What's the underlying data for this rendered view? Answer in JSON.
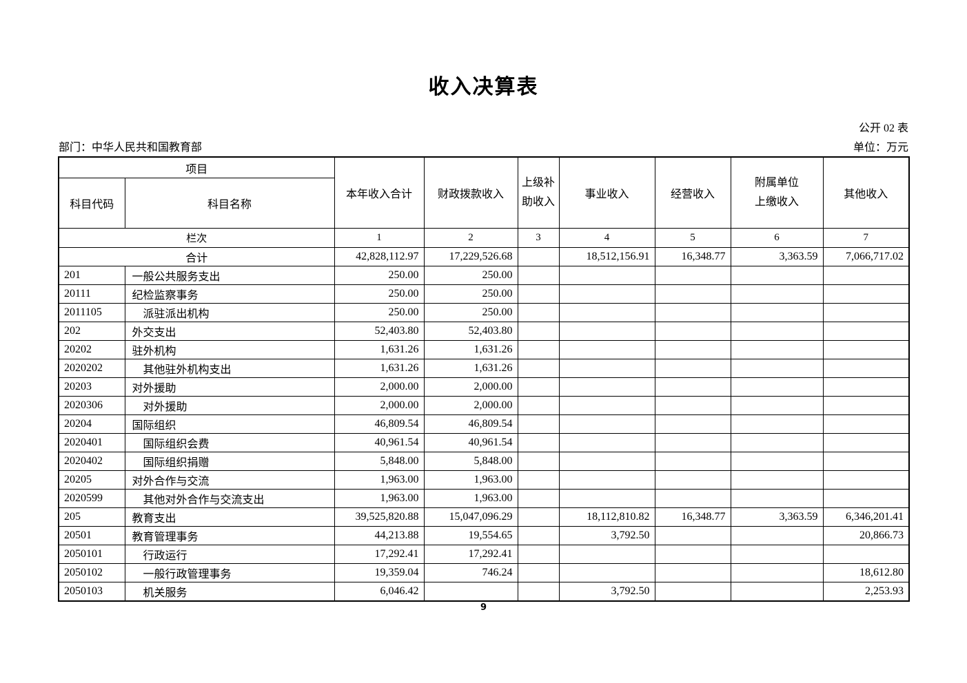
{
  "page": {
    "title": "收入决算表",
    "form_code": "公开 02 表",
    "department": "部门：中华人民共和国教育部",
    "unit": "单位：万元",
    "page_number": "9"
  },
  "table": {
    "header": {
      "item_group": "项目",
      "code": "科目代码",
      "name": "科目名称",
      "col_total": "本年收入合计",
      "col_fiscal": "财政拨款收入",
      "col_subsidy_line1": "上级补",
      "col_subsidy_line2": "助收入",
      "col_business": "事业收入",
      "col_operating": "经营收入",
      "col_affiliate_line1": "附属单位",
      "col_affiliate_line2": "上缴收入",
      "col_other": "其他收入",
      "row_label": "栏次",
      "col_numbers": [
        "1",
        "2",
        "3",
        "4",
        "5",
        "6",
        "7"
      ]
    },
    "rows": [
      {
        "code": "",
        "name": "合计",
        "span2": true,
        "bold": true,
        "indent": 0,
        "values": [
          "42,828,112.97",
          "17,229,526.68",
          "",
          "18,512,156.91",
          "16,348.77",
          "3,363.59",
          "7,066,717.02"
        ]
      },
      {
        "code": "201",
        "name": "一般公共服务支出",
        "bold": true,
        "indent": 0,
        "values": [
          "250.00",
          "250.00",
          "",
          "",
          "",
          "",
          ""
        ]
      },
      {
        "code": "20111",
        "name": "纪检监察事务",
        "bold": false,
        "indent": 0,
        "values": [
          "250.00",
          "250.00",
          "",
          "",
          "",
          "",
          ""
        ]
      },
      {
        "code": "2011105",
        "name": "派驻派出机构",
        "bold": false,
        "indent": 1,
        "values": [
          "250.00",
          "250.00",
          "",
          "",
          "",
          "",
          ""
        ]
      },
      {
        "code": "202",
        "name": "外交支出",
        "bold": true,
        "indent": 0,
        "values": [
          "52,403.80",
          "52,403.80",
          "",
          "",
          "",
          "",
          ""
        ]
      },
      {
        "code": "20202",
        "name": "驻外机构",
        "bold": false,
        "indent": 0,
        "values": [
          "1,631.26",
          "1,631.26",
          "",
          "",
          "",
          "",
          ""
        ]
      },
      {
        "code": "2020202",
        "name": "其他驻外机构支出",
        "bold": false,
        "indent": 1,
        "values": [
          "1,631.26",
          "1,631.26",
          "",
          "",
          "",
          "",
          ""
        ]
      },
      {
        "code": "20203",
        "name": "对外援助",
        "bold": false,
        "indent": 0,
        "values": [
          "2,000.00",
          "2,000.00",
          "",
          "",
          "",
          "",
          ""
        ]
      },
      {
        "code": "2020306",
        "name": "对外援助",
        "bold": false,
        "indent": 1,
        "values": [
          "2,000.00",
          "2,000.00",
          "",
          "",
          "",
          "",
          ""
        ]
      },
      {
        "code": "20204",
        "name": "国际组织",
        "bold": false,
        "indent": 0,
        "values": [
          "46,809.54",
          "46,809.54",
          "",
          "",
          "",
          "",
          ""
        ]
      },
      {
        "code": "2020401",
        "name": "国际组织会费",
        "bold": false,
        "indent": 1,
        "values": [
          "40,961.54",
          "40,961.54",
          "",
          "",
          "",
          "",
          ""
        ]
      },
      {
        "code": "2020402",
        "name": "国际组织捐赠",
        "bold": false,
        "indent": 1,
        "values": [
          "5,848.00",
          "5,848.00",
          "",
          "",
          "",
          "",
          ""
        ]
      },
      {
        "code": "20205",
        "name": "对外合作与交流",
        "bold": false,
        "indent": 0,
        "values": [
          "1,963.00",
          "1,963.00",
          "",
          "",
          "",
          "",
          ""
        ]
      },
      {
        "code": "2020599",
        "name": "其他对外合作与交流支出",
        "bold": false,
        "indent": 1,
        "values": [
          "1,963.00",
          "1,963.00",
          "",
          "",
          "",
          "",
          ""
        ]
      },
      {
        "code": "205",
        "name": "教育支出",
        "bold": true,
        "indent": 0,
        "values": [
          "39,525,820.88",
          "15,047,096.29",
          "",
          "18,112,810.82",
          "16,348.77",
          "3,363.59",
          "6,346,201.41"
        ]
      },
      {
        "code": "20501",
        "name": "教育管理事务",
        "bold": false,
        "indent": 0,
        "values": [
          "44,213.88",
          "19,554.65",
          "",
          "3,792.50",
          "",
          "",
          "20,866.73"
        ]
      },
      {
        "code": "2050101",
        "name": "行政运行",
        "bold": false,
        "indent": 1,
        "values": [
          "17,292.41",
          "17,292.41",
          "",
          "",
          "",
          "",
          ""
        ]
      },
      {
        "code": "2050102",
        "name": "一般行政管理事务",
        "bold": false,
        "indent": 1,
        "values": [
          "19,359.04",
          "746.24",
          "",
          "",
          "",
          "",
          "18,612.80"
        ]
      },
      {
        "code": "2050103",
        "name": "机关服务",
        "bold": false,
        "indent": 1,
        "values": [
          "6,046.42",
          "",
          "",
          "3,792.50",
          "",
          "",
          "2,253.93"
        ]
      }
    ]
  }
}
